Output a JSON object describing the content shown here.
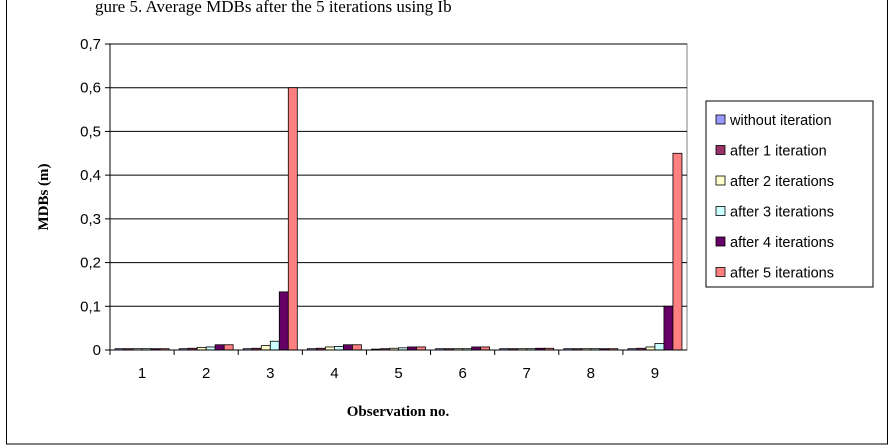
{
  "caption_fragment": "gure 5. Average MDBs after the 5 iterations using Ib",
  "chart_data": {
    "type": "bar",
    "title": "",
    "xlabel": "Observation no.",
    "ylabel": "MDBs (m)",
    "ylim": [
      0,
      0.7
    ],
    "yticks": [
      "0",
      "0,1",
      "0,2",
      "0,3",
      "0,4",
      "0,5",
      "0,6",
      "0,7"
    ],
    "grid": true,
    "legend_position": "right",
    "categories": [
      "1",
      "2",
      "3",
      "4",
      "5",
      "6",
      "7",
      "8",
      "9"
    ],
    "series": [
      {
        "name": "without iteration",
        "color": "#9999ff",
        "values": [
          0.003,
          0.003,
          0.003,
          0.003,
          0.002,
          0.003,
          0.003,
          0.003,
          0.003
        ]
      },
      {
        "name": "after 1 iteration",
        "color": "#993366",
        "values": [
          0.003,
          0.004,
          0.004,
          0.004,
          0.003,
          0.003,
          0.003,
          0.003,
          0.004
        ]
      },
      {
        "name": "after 2 iterations",
        "color": "#ffffcc",
        "values": [
          0.003,
          0.006,
          0.01,
          0.007,
          0.004,
          0.003,
          0.003,
          0.003,
          0.007
        ]
      },
      {
        "name": "after 3 iterations",
        "color": "#ccffff",
        "values": [
          0.003,
          0.007,
          0.02,
          0.008,
          0.005,
          0.003,
          0.003,
          0.003,
          0.015
        ]
      },
      {
        "name": "after 4 iterations",
        "color": "#660066",
        "values": [
          0.003,
          0.012,
          0.133,
          0.012,
          0.007,
          0.007,
          0.004,
          0.003,
          0.1
        ]
      },
      {
        "name": "after 5 iterations",
        "color": "#ff8080",
        "values": [
          0.003,
          0.012,
          0.6,
          0.012,
          0.007,
          0.007,
          0.004,
          0.003,
          0.45
        ]
      }
    ]
  }
}
